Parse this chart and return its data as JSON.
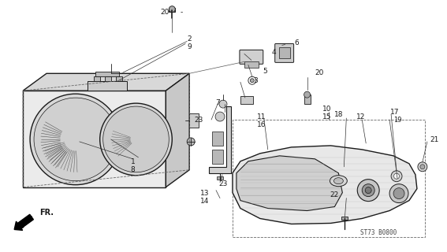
{
  "bg_color": "#ffffff",
  "line_color": "#1a1a1a",
  "diagram_code": "ST73 B0800",
  "font_size_labels": 6.5,
  "font_size_code": 5.5,
  "headlight": {
    "body_color": "#e8e8e8",
    "lens_color": "#d5d5d5"
  },
  "turn_signal": {
    "lens_color": "#e5e5e5",
    "reflector_color": "#cccccc"
  }
}
